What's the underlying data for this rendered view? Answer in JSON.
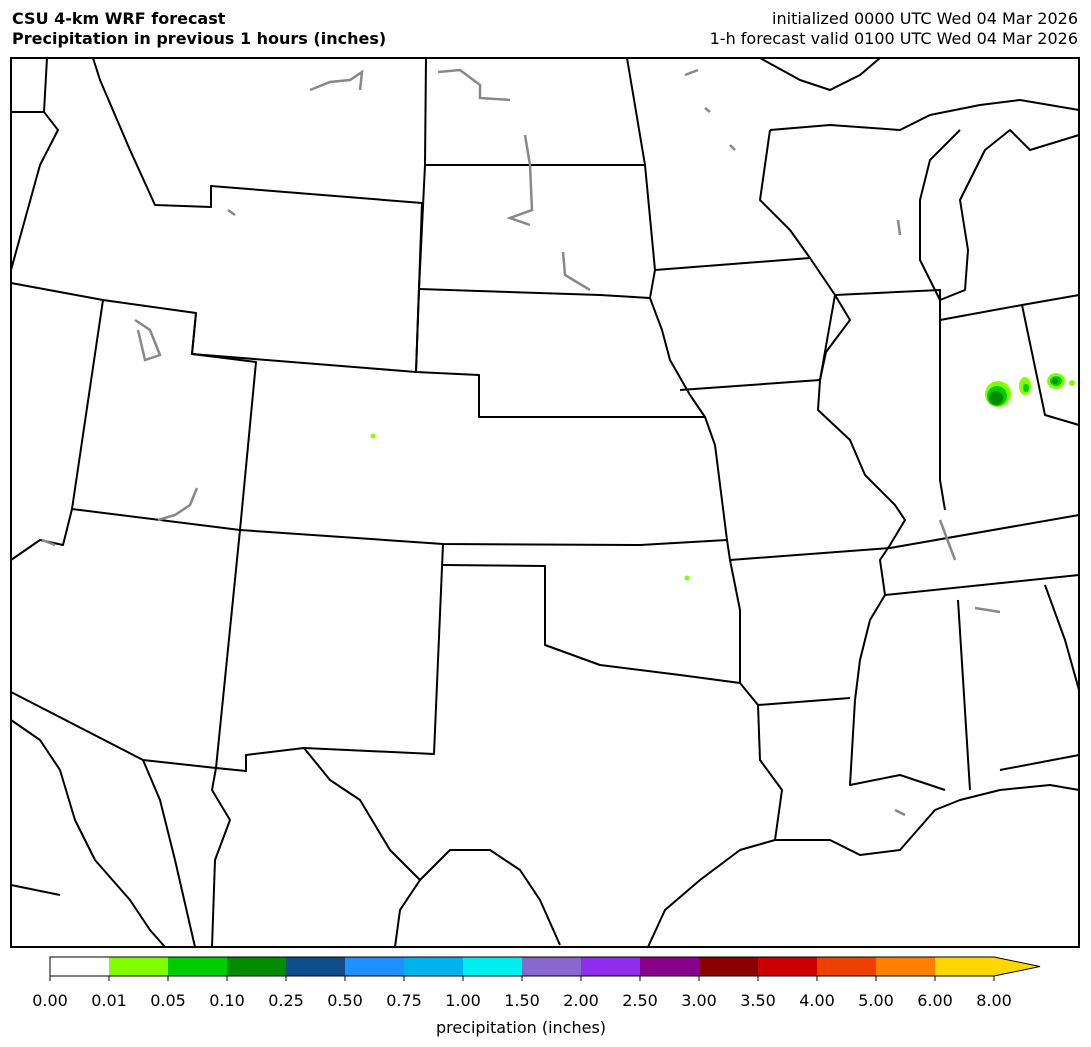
{
  "header": {
    "title": "CSU 4-km WRF forecast",
    "subtitle": "Precipitation in previous 1 hours (inches)",
    "init": "initialized 0000 UTC Wed 04 Mar 2026",
    "valid": "1-h forecast valid 0100 UTC Wed 04 Mar 2026"
  },
  "colorbar": {
    "label": "precipitation (inches)",
    "ticks": [
      "0.00",
      "0.01",
      "0.05",
      "0.10",
      "0.25",
      "0.50",
      "0.75",
      "1.00",
      "1.50",
      "2.00",
      "2.50",
      "3.00",
      "3.50",
      "4.00",
      "5.00",
      "6.00",
      "8.00"
    ],
    "colors": [
      "#ffffff",
      "#7fff00",
      "#00cd00",
      "#008b00",
      "#104e8b",
      "#1e90ff",
      "#00b2ee",
      "#00eeee",
      "#8968cd",
      "#912cee",
      "#8b008b",
      "#8b0000",
      "#cd0000",
      "#ee4000",
      "#ff7f00",
      "#ffd700"
    ]
  }
}
